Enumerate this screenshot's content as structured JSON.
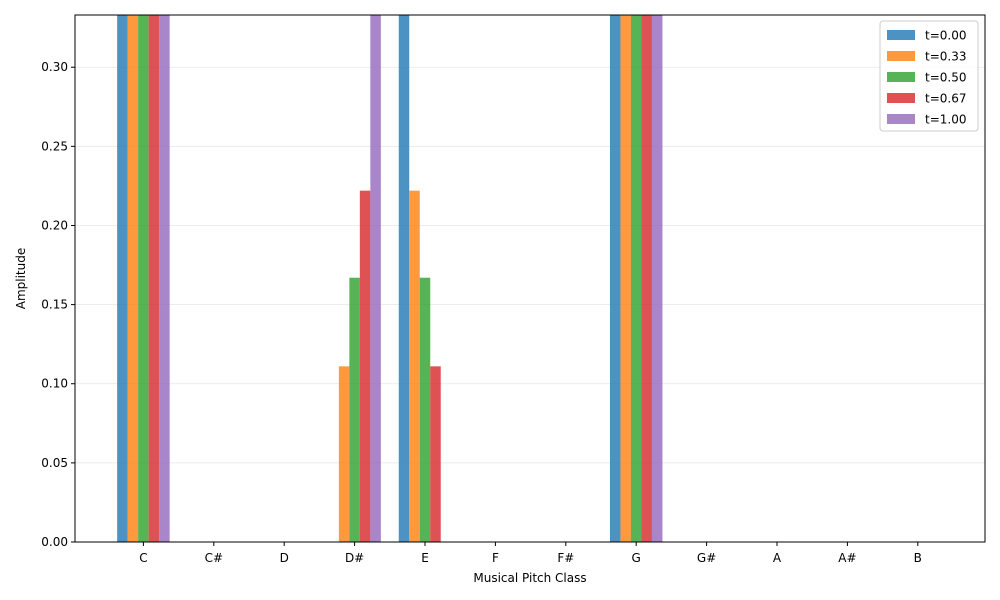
{
  "chart_data": {
    "type": "bar",
    "xlabel": "Musical Pitch Class",
    "ylabel": "Amplitude",
    "categories": [
      "C",
      "C#",
      "D",
      "D#",
      "E",
      "F",
      "F#",
      "G",
      "G#",
      "A",
      "A#",
      "B"
    ],
    "ylim": [
      0,
      0.333
    ],
    "yticks": [
      "0.00",
      "0.05",
      "0.10",
      "0.15",
      "0.20",
      "0.25",
      "0.30"
    ],
    "grid": "y",
    "legend_position": "top-right",
    "series": [
      {
        "name": "t=0.00",
        "color": "#1f77b4",
        "values": [
          0.333,
          0,
          0,
          0,
          0.333,
          0,
          0,
          0.333,
          0,
          0,
          0,
          0
        ]
      },
      {
        "name": "t=0.33",
        "color": "#ff7f0e",
        "values": [
          0.333,
          0,
          0,
          0.111,
          0.222,
          0,
          0,
          0.333,
          0,
          0,
          0,
          0
        ]
      },
      {
        "name": "t=0.50",
        "color": "#2ca02c",
        "values": [
          0.333,
          0,
          0,
          0.167,
          0.167,
          0,
          0,
          0.333,
          0,
          0,
          0,
          0
        ]
      },
      {
        "name": "t=0.67",
        "color": "#d62728",
        "values": [
          0.333,
          0,
          0,
          0.222,
          0.111,
          0,
          0,
          0.333,
          0,
          0,
          0,
          0
        ]
      },
      {
        "name": "t=1.00",
        "color": "#9467bd",
        "values": [
          0.333,
          0,
          0,
          0.333,
          0,
          0,
          0,
          0.333,
          0,
          0,
          0,
          0
        ]
      }
    ]
  }
}
